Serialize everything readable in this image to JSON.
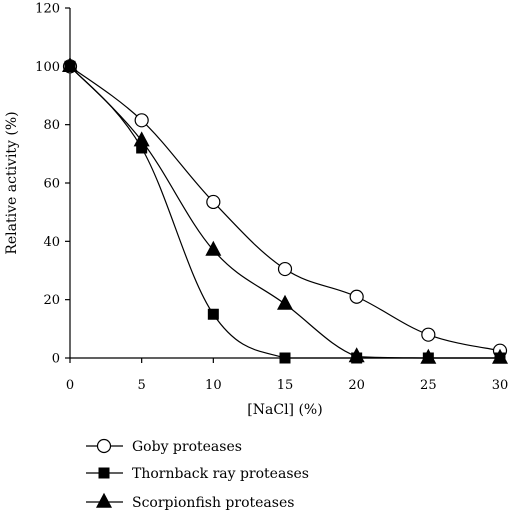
{
  "chart_data": {
    "type": "line",
    "title": "",
    "xlabel": "[NaCl] (%)",
    "ylabel": "Relative activity (%)",
    "xlim": [
      0,
      30
    ],
    "ylim": [
      0,
      120
    ],
    "xticks": [
      0,
      5,
      10,
      15,
      20,
      25,
      30
    ],
    "yticks": [
      0,
      20,
      40,
      60,
      80,
      100,
      120
    ],
    "grid": false,
    "legend_position": "bottom-left",
    "series": [
      {
        "name": "Goby proteases",
        "marker": "open-circle",
        "color": "#000000",
        "x": [
          0,
          5,
          10,
          15,
          20,
          25,
          30
        ],
        "y": [
          100,
          81.5,
          53.5,
          30.5,
          21,
          8,
          2.5
        ]
      },
      {
        "name": "Thornback ray proteases",
        "marker": "filled-square",
        "color": "#000000",
        "x": [
          0,
          5,
          10,
          15,
          20,
          25,
          30
        ],
        "y": [
          100,
          72,
          15,
          0,
          0,
          0,
          0
        ]
      },
      {
        "name": "Scorpionfish proteases",
        "marker": "filled-triangle",
        "color": "#000000",
        "x": [
          0,
          5,
          10,
          15,
          20,
          25,
          30
        ],
        "y": [
          100,
          74.5,
          37,
          18.5,
          0.5,
          0,
          0
        ]
      }
    ]
  }
}
